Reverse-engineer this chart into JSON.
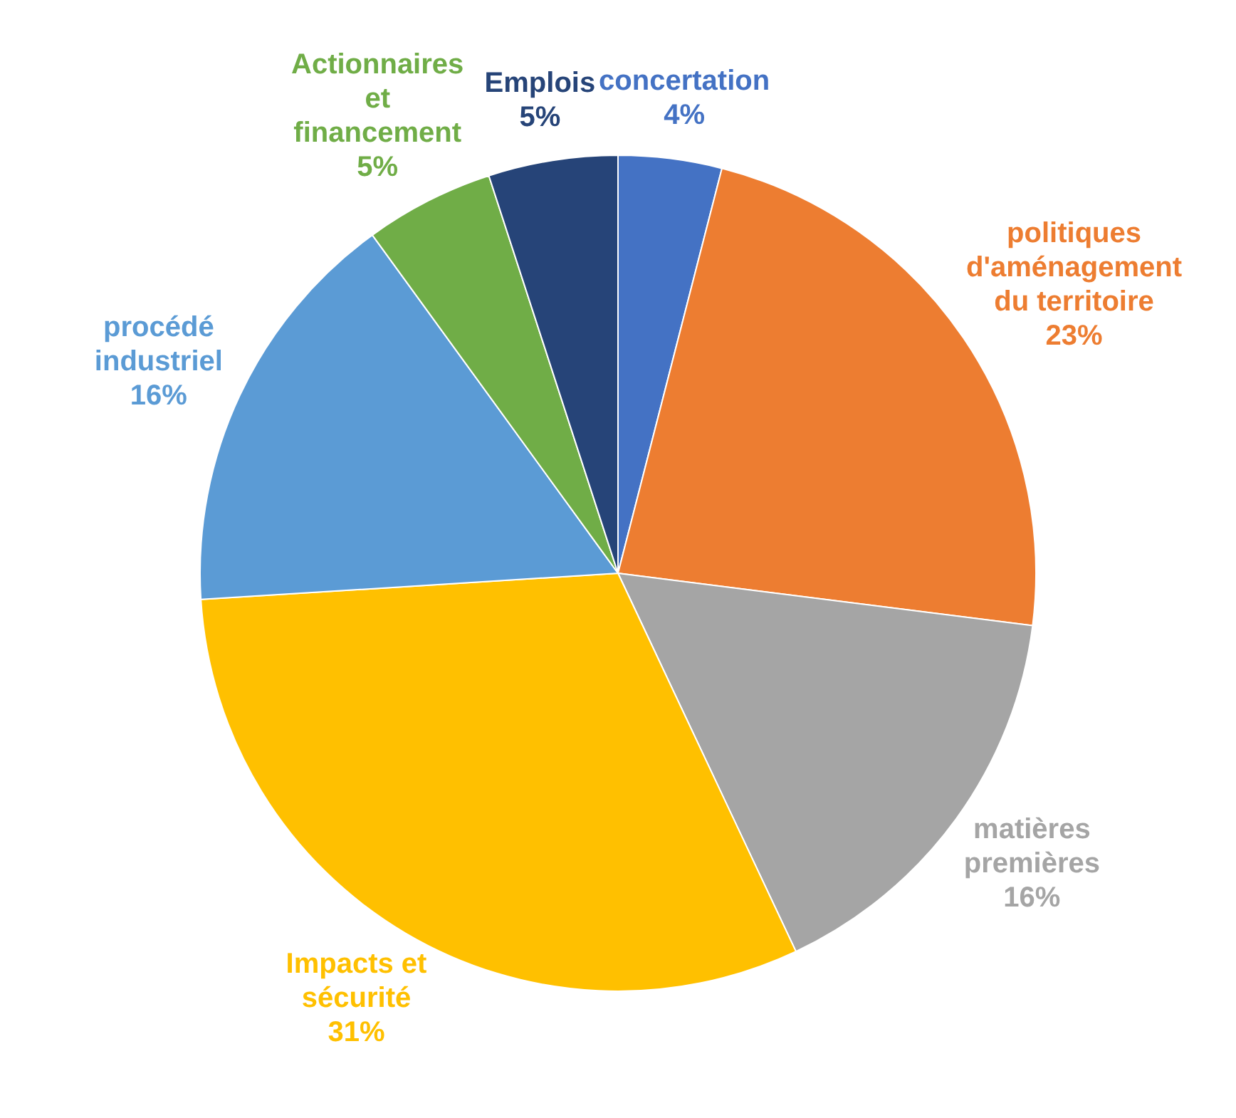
{
  "chart_data": {
    "type": "pie",
    "categories": [
      "concertation",
      "politiques d'aménagement du territoire",
      "matières premières",
      "Impacts et sécurité",
      "procédé industriel",
      "Actionnaires et financement",
      "Emplois"
    ],
    "values": [
      4,
      23,
      16,
      31,
      16,
      5,
      5
    ],
    "value_labels": [
      "4%",
      "23%",
      "16%",
      "31%",
      "16%",
      "5%",
      "5%"
    ],
    "colors": [
      "#4472c4",
      "#ed7d31",
      "#a5a5a5",
      "#ffc000",
      "#5b9bd5",
      "#70ad47",
      "#264478"
    ],
    "legend": false
  }
}
